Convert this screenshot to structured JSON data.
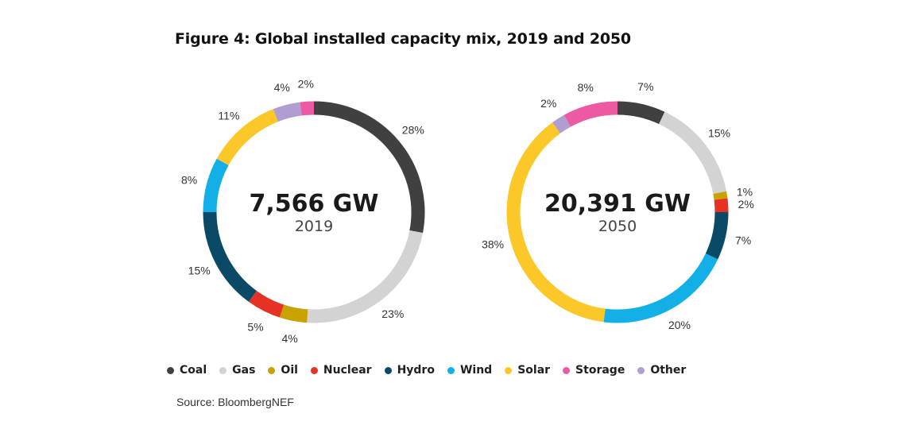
{
  "title": "Figure 4: Global installed capacity mix, 2019 and 2050",
  "source": "Source: BloombergNEF",
  "legend": [
    {
      "name": "Coal",
      "color": "#404040"
    },
    {
      "name": "Gas",
      "color": "#d3d3d3"
    },
    {
      "name": "Oil",
      "color": "#c9a200"
    },
    {
      "name": "Nuclear",
      "color": "#e63224"
    },
    {
      "name": "Hydro",
      "color": "#0b4a66"
    },
    {
      "name": "Wind",
      "color": "#12b0e6"
    },
    {
      "name": "Solar",
      "color": "#fcc829"
    },
    {
      "name": "Storage",
      "color": "#ec5aa4"
    },
    {
      "name": "Other",
      "color": "#b19ed1"
    }
  ],
  "chart_data": [
    {
      "type": "pie",
      "title": "7,566 GW",
      "subtitle": "2019",
      "categories": [
        "Coal",
        "Gas",
        "Oil",
        "Nuclear",
        "Hydro",
        "Wind",
        "Solar",
        "Other",
        "Storage"
      ],
      "values": [
        28,
        23,
        4,
        5,
        15,
        8,
        11,
        4,
        2
      ],
      "labels": [
        "28%",
        "23%",
        "4%",
        "5%",
        "15%",
        "8%",
        "11%",
        "4%",
        "2%"
      ]
    },
    {
      "type": "pie",
      "title": "20,391 GW",
      "subtitle": "2050",
      "categories": [
        "Coal",
        "Gas",
        "Oil",
        "Nuclear",
        "Hydro",
        "Wind",
        "Solar",
        "Other",
        "Storage"
      ],
      "values": [
        7,
        15,
        1,
        2,
        7,
        20,
        38,
        2,
        8
      ],
      "labels": [
        "7%",
        "15%",
        "1%",
        "2%",
        "7%",
        "20%",
        "38%",
        "2%",
        "8%"
      ]
    }
  ]
}
